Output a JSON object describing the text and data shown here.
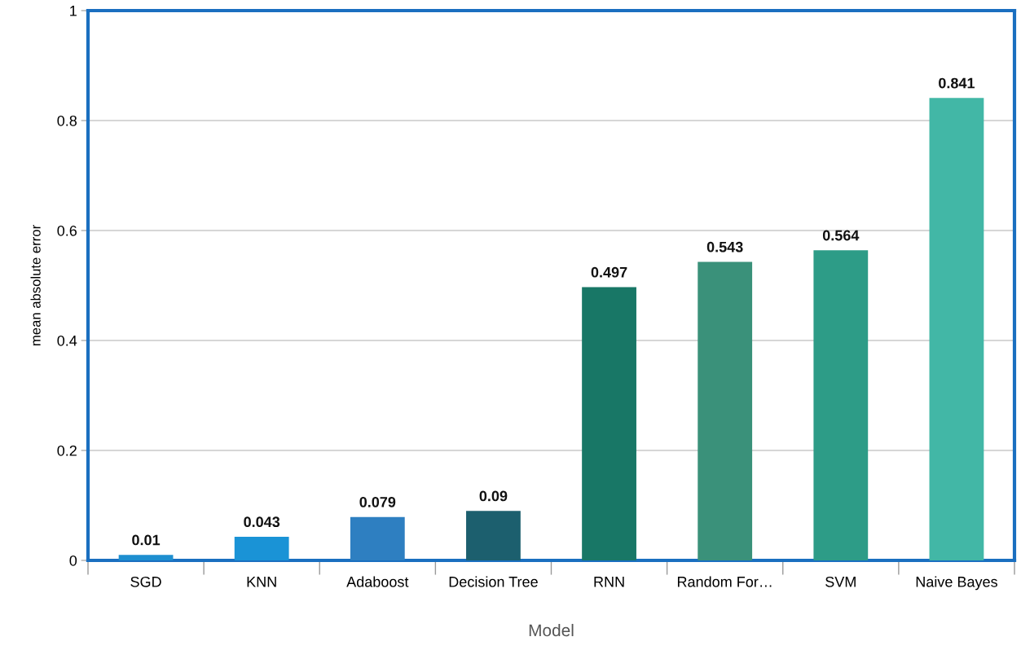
{
  "chart_data": {
    "type": "bar",
    "xlabel": "Model",
    "ylabel": "mean absolute error",
    "categories": [
      "SGD",
      "KNN",
      "Adaboost",
      "Decision Tree",
      "RNN",
      "Random For…",
      "SVM",
      "Naive Bayes"
    ],
    "values": [
      0.01,
      0.043,
      0.079,
      0.09,
      0.497,
      0.543,
      0.564,
      0.841
    ],
    "colors": [
      "#1e8fd0",
      "#1a93d6",
      "#2e7fc1",
      "#1c5f6e",
      "#187766",
      "#3a917a",
      "#2d9c87",
      "#42b7a6"
    ],
    "ylim": [
      0,
      1
    ],
    "yticks": [
      0,
      0.2,
      0.4,
      0.6,
      0.8,
      1
    ],
    "grid": "y",
    "data_labels": true
  }
}
